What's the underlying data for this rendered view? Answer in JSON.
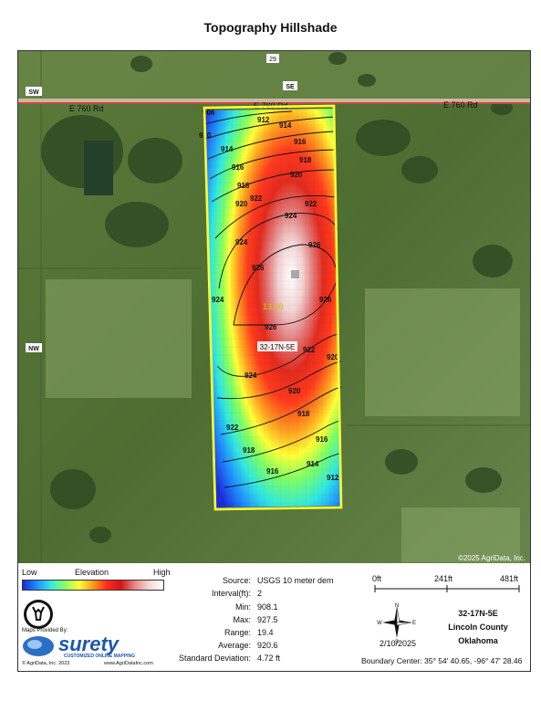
{
  "title": "Topography Hillshade",
  "map": {
    "road_label_left": "E 760 Rd",
    "road_label_center": "E 760 Rd",
    "road_label_right": "E 760 Rd",
    "section_top_num": "29",
    "section_top_dir": "SE",
    "left_label_top": "SW",
    "left_label_mid": "NW",
    "parcel_label": "32-17N-5E",
    "relief_value": "13.00",
    "copyright": "©2025 AgriData, Inc.",
    "contours": [
      "906",
      "910",
      "912",
      "914",
      "914",
      "916",
      "916",
      "918",
      "918",
      "920",
      "920",
      "922",
      "922",
      "924",
      "924",
      "926",
      "926",
      "926",
      "926",
      "924",
      "924",
      "922",
      "922",
      "920",
      "920",
      "918",
      "918",
      "916",
      "916",
      "914",
      "912"
    ]
  },
  "legend": {
    "low": "Low",
    "elevation": "Elevation",
    "high": "High",
    "gradient_colors": [
      "#1b2cd8",
      "#1f8fff",
      "#37e8e0",
      "#8dff62",
      "#ffff38",
      "#ff9a1e",
      "#ff2a1e",
      "#d41616",
      "#e88a8a",
      "#f6d6d6",
      "#ffffff"
    ]
  },
  "stats": {
    "source_label": "Source:",
    "source_value": "USGS 10 meter dem",
    "interval_label": "Interval(ft):",
    "interval_value": "2",
    "min_label": "Min:",
    "min_value": "908.1",
    "max_label": "Max:",
    "max_value": "927.5",
    "range_label": "Range:",
    "range_value": "19.4",
    "average_label": "Average:",
    "average_value": "920.6",
    "std_label": "Standard Deviation:",
    "std_value": "4.72 ft"
  },
  "scale": {
    "t0": "0ft",
    "t1": "241ft",
    "t2": "481ft"
  },
  "compass": {
    "n": "N",
    "s": "S",
    "e": "E",
    "w": "W"
  },
  "info": {
    "location_code": "32-17N-5E",
    "county": "Lincoln County",
    "state": "Oklahoma",
    "date": "2/10/2025",
    "boundary_center": "Boundary Center: 35° 54' 40.65, -96° 47' 28.46"
  },
  "branding": {
    "maps_provided_by": "Maps Provided By:",
    "brand_name": "surety",
    "brand_tagline": "CUSTOMIZED ONLINE MAPPING",
    "footer_left": "© AgriData, Inc. 2023",
    "footer_right": "www.AgriDataInc.com"
  }
}
